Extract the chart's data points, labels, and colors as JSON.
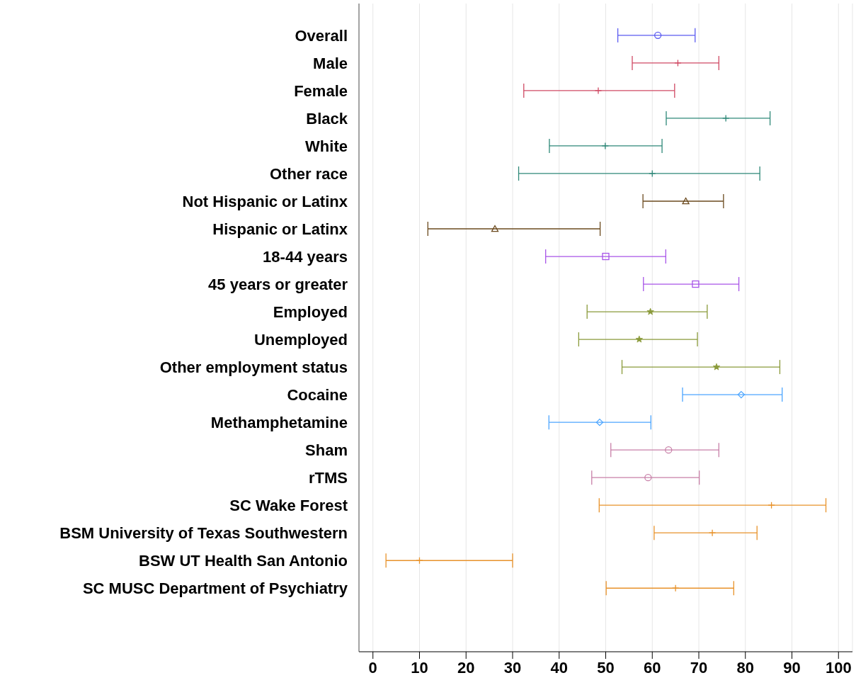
{
  "chart_data": {
    "type": "scatter",
    "orientation": "horizontal",
    "categories": [
      "Overall",
      "Male",
      "Female",
      "Black",
      "White",
      "Other race",
      "Not Hispanic or Latinx",
      "Hispanic or Latinx",
      "18-44 years",
      "45 years or greater",
      "Employed",
      "Unemployed",
      "Other employment status",
      "Cocaine",
      "Methamphetamine",
      "Sham",
      "rTMS",
      "SC Wake Forest",
      "BSM University of Texas Southwestern",
      "BSW UT Health San Antonio",
      "SC MUSC Department of Psychiatry"
    ],
    "series": [
      {
        "color": "#5a5af0",
        "marker": "circle",
        "values": [
          61.2,
          null,
          null,
          null,
          null,
          null,
          null,
          null,
          null,
          null,
          null,
          null,
          null,
          null,
          null,
          null,
          null,
          null,
          null,
          null,
          null
        ],
        "errors": [
          [
            52.6,
            69.2
          ],
          null,
          null,
          null,
          null,
          null,
          null,
          null,
          null,
          null,
          null,
          null,
          null,
          null,
          null,
          null,
          null,
          null,
          null,
          null,
          null
        ]
      },
      {
        "color": "#d04a64",
        "marker": "cross",
        "values": [
          null,
          65.5,
          48.4,
          null,
          null,
          null,
          null,
          null,
          null,
          null,
          null,
          null,
          null,
          null,
          null,
          null,
          null,
          null,
          null,
          null,
          null
        ],
        "errors": [
          null,
          [
            55.7,
            74.3
          ],
          [
            32.4,
            64.8
          ],
          null,
          null,
          null,
          null,
          null,
          null,
          null,
          null,
          null,
          null,
          null,
          null,
          null,
          null,
          null,
          null,
          null,
          null
        ]
      },
      {
        "color": "#2e8878",
        "marker": "cross",
        "values": [
          null,
          null,
          null,
          75.8,
          49.9,
          60.0,
          null,
          null,
          null,
          null,
          null,
          null,
          null,
          null,
          null,
          null,
          null,
          null,
          null,
          null,
          null
        ],
        "errors": [
          null,
          null,
          null,
          [
            63.0,
            85.3
          ],
          [
            37.9,
            62.1
          ],
          [
            31.3,
            83.1
          ],
          null,
          null,
          null,
          null,
          null,
          null,
          null,
          null,
          null,
          null,
          null,
          null,
          null,
          null,
          null
        ]
      },
      {
        "color": "#6b4a1e",
        "marker": "triangle",
        "values": [
          null,
          null,
          null,
          null,
          null,
          null,
          67.2,
          26.2,
          null,
          null,
          null,
          null,
          null,
          null,
          null,
          null,
          null,
          null,
          null,
          null,
          null
        ],
        "errors": [
          null,
          null,
          null,
          null,
          null,
          null,
          [
            58.0,
            75.3
          ],
          [
            11.8,
            48.8
          ],
          null,
          null,
          null,
          null,
          null,
          null,
          null,
          null,
          null,
          null,
          null,
          null,
          null
        ]
      },
      {
        "color": "#a855e8",
        "marker": "square",
        "values": [
          null,
          null,
          null,
          null,
          null,
          null,
          null,
          null,
          50.0,
          69.3,
          null,
          null,
          null,
          null,
          null,
          null,
          null,
          null,
          null,
          null,
          null
        ],
        "errors": [
          null,
          null,
          null,
          null,
          null,
          null,
          null,
          null,
          [
            37.1,
            62.9
          ],
          [
            58.1,
            78.6
          ],
          null,
          null,
          null,
          null,
          null,
          null,
          null,
          null,
          null,
          null,
          null
        ]
      },
      {
        "color": "#8a9a3a",
        "marker": "star",
        "values": [
          null,
          null,
          null,
          null,
          null,
          null,
          null,
          null,
          null,
          null,
          59.6,
          57.2,
          73.8,
          null,
          null,
          null,
          null,
          null,
          null,
          null,
          null
        ],
        "errors": [
          null,
          null,
          null,
          null,
          null,
          null,
          null,
          null,
          null,
          null,
          [
            46.0,
            71.8
          ],
          [
            44.2,
            69.7
          ],
          [
            53.5,
            87.4
          ],
          null,
          null,
          null,
          null,
          null,
          null,
          null,
          null
        ]
      },
      {
        "color": "#4da6ff",
        "marker": "diamond",
        "values": [
          null,
          null,
          null,
          null,
          null,
          null,
          null,
          null,
          null,
          null,
          null,
          null,
          null,
          79.1,
          48.7,
          null,
          null,
          null,
          null,
          null,
          null
        ],
        "errors": [
          null,
          null,
          null,
          null,
          null,
          null,
          null,
          null,
          null,
          null,
          null,
          null,
          null,
          [
            66.5,
            87.9
          ],
          [
            37.8,
            59.7
          ],
          null,
          null,
          null,
          null,
          null,
          null
        ]
      },
      {
        "color": "#c880a8",
        "marker": "circle",
        "values": [
          null,
          null,
          null,
          null,
          null,
          null,
          null,
          null,
          null,
          null,
          null,
          null,
          null,
          null,
          null,
          63.5,
          59.1,
          null,
          null,
          null,
          null
        ],
        "errors": [
          null,
          null,
          null,
          null,
          null,
          null,
          null,
          null,
          null,
          null,
          null,
          null,
          null,
          null,
          null,
          [
            51.1,
            74.3
          ],
          [
            47.0,
            70.1
          ],
          null,
          null,
          null,
          null
        ]
      },
      {
        "color": "#e8922a",
        "marker": "cross",
        "values": [
          null,
          null,
          null,
          null,
          null,
          null,
          null,
          null,
          null,
          null,
          null,
          null,
          null,
          null,
          null,
          null,
          null,
          85.6,
          72.9,
          10.0,
          65.0
        ],
        "errors": [
          null,
          null,
          null,
          null,
          null,
          null,
          null,
          null,
          null,
          null,
          null,
          null,
          null,
          null,
          null,
          null,
          null,
          [
            48.6,
            97.3
          ],
          [
            60.4,
            82.5
          ],
          [
            2.8,
            30.0
          ],
          [
            50.1,
            77.5
          ]
        ]
      }
    ],
    "xlim": [
      -3,
      103
    ],
    "xticks": [
      0,
      10,
      20,
      30,
      40,
      50,
      60,
      70,
      80,
      90,
      100
    ],
    "grid": "x"
  }
}
